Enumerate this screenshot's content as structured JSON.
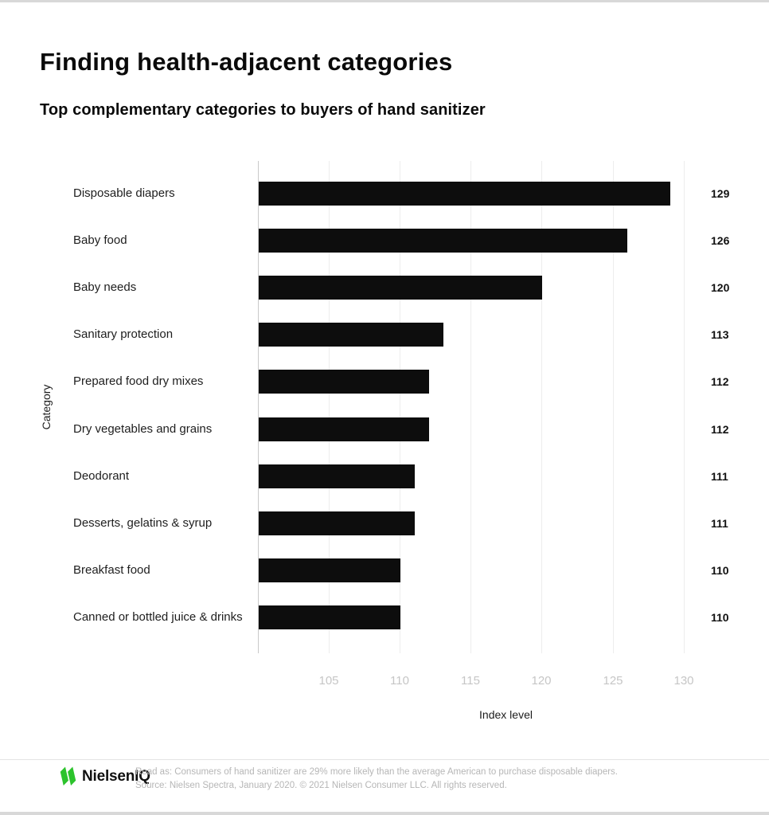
{
  "header": {
    "title": "Finding health-adjacent categories",
    "subtitle": "Top complementary categories to buyers of hand sanitizer"
  },
  "chart_data": {
    "type": "bar",
    "orientation": "horizontal",
    "categories": [
      "Disposable diapers",
      "Baby food",
      "Baby needs",
      "Sanitary protection",
      "Prepared food dry mixes",
      "Dry vegetables and grains",
      "Deodorant",
      "Desserts, gelatins & syrup",
      "Breakfast food",
      "Canned or bottled juice & drinks"
    ],
    "values": [
      129,
      126,
      120,
      113,
      112,
      112,
      111,
      111,
      110,
      110
    ],
    "value_labels_shown": true,
    "xlabel": "Index level",
    "ylabel": "Category",
    "xlim": [
      100,
      131.2
    ],
    "xticks": [
      105,
      110,
      115,
      120,
      125,
      130
    ],
    "grid": "vertical",
    "legend": "none",
    "bar_color": "#0d0d0d"
  },
  "footer": {
    "logo_text": "NielsenIQ",
    "logo_icon": "nielseniq-green-mark",
    "read_as": "Read as: Consumers of hand sanitizer are 29% more likely than the average American to purchase disposable diapers.",
    "source": "Source: Nielsen Spectra, January 2020. © 2021 Nielsen Consumer LLC. All rights reserved."
  },
  "colors": {
    "bar": "#0d0d0d",
    "gridline": "#ededed",
    "axis_line": "#c9c9c9",
    "tick_label": "#c6c6c6",
    "footer_text": "#b6b6b6",
    "brand_green": "#2cc32c",
    "text": "#0a0a0a"
  }
}
